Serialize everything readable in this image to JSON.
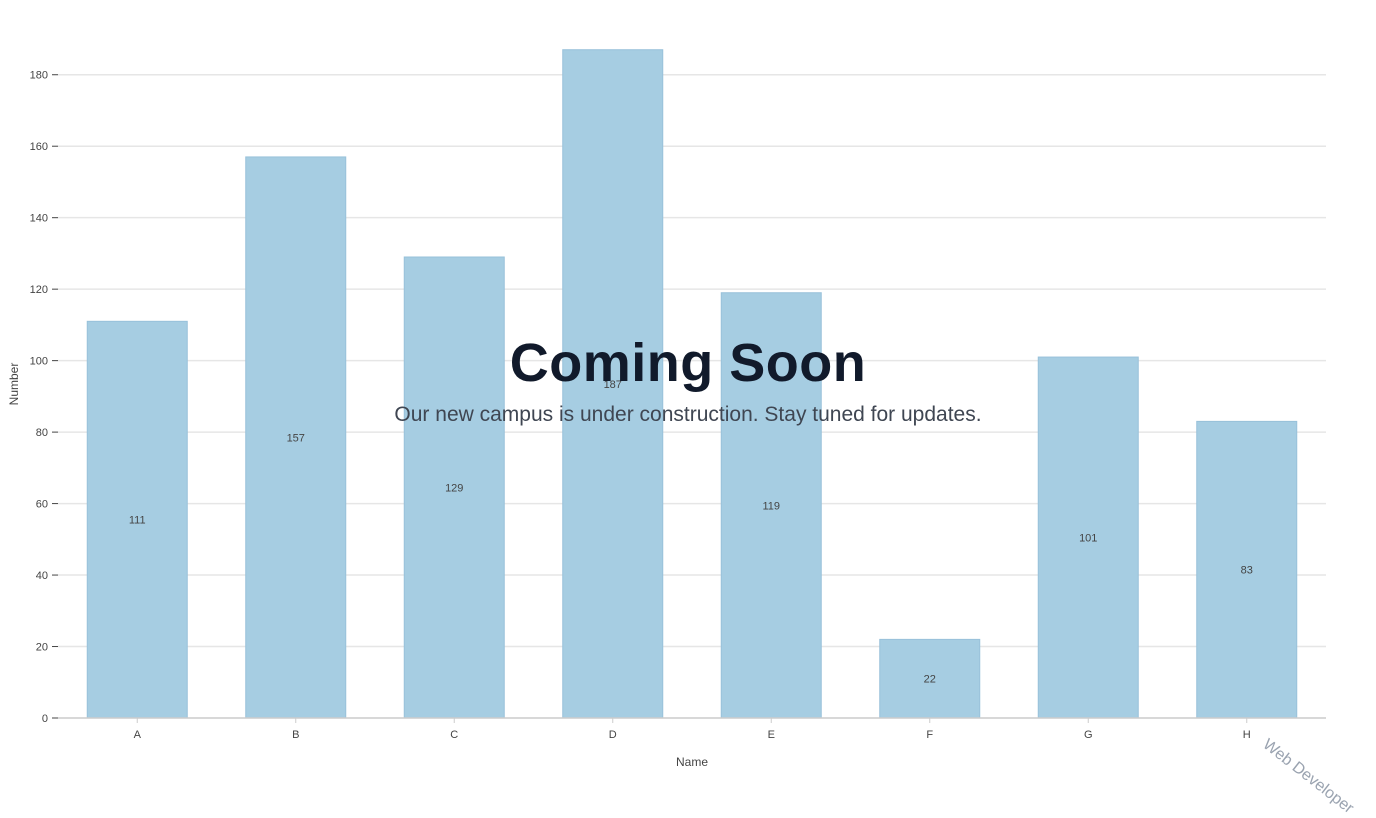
{
  "overlay": {
    "title": "Coming Soon",
    "subtitle": "Our new campus is under construction. Stay tuned for updates."
  },
  "watermark": "Web Developer",
  "colors": {
    "bar_fill": "#a6cde2",
    "bar_stroke": "#98c1da",
    "grid": "#e6e6e6",
    "axis": "#cccccc",
    "text": "#444444"
  },
  "chart_data": {
    "type": "bar",
    "title": "",
    "xlabel": "Name",
    "ylabel": "Number",
    "categories": [
      "A",
      "B",
      "C",
      "D",
      "E",
      "F",
      "G",
      "H"
    ],
    "values": [
      111,
      157,
      129,
      187,
      119,
      22,
      101,
      83
    ],
    "ylim": [
      0,
      190
    ],
    "yticks": [
      0,
      20,
      40,
      60,
      80,
      100,
      120,
      140,
      160,
      180
    ],
    "grid": true,
    "legend": "none",
    "data_labels": "center"
  }
}
